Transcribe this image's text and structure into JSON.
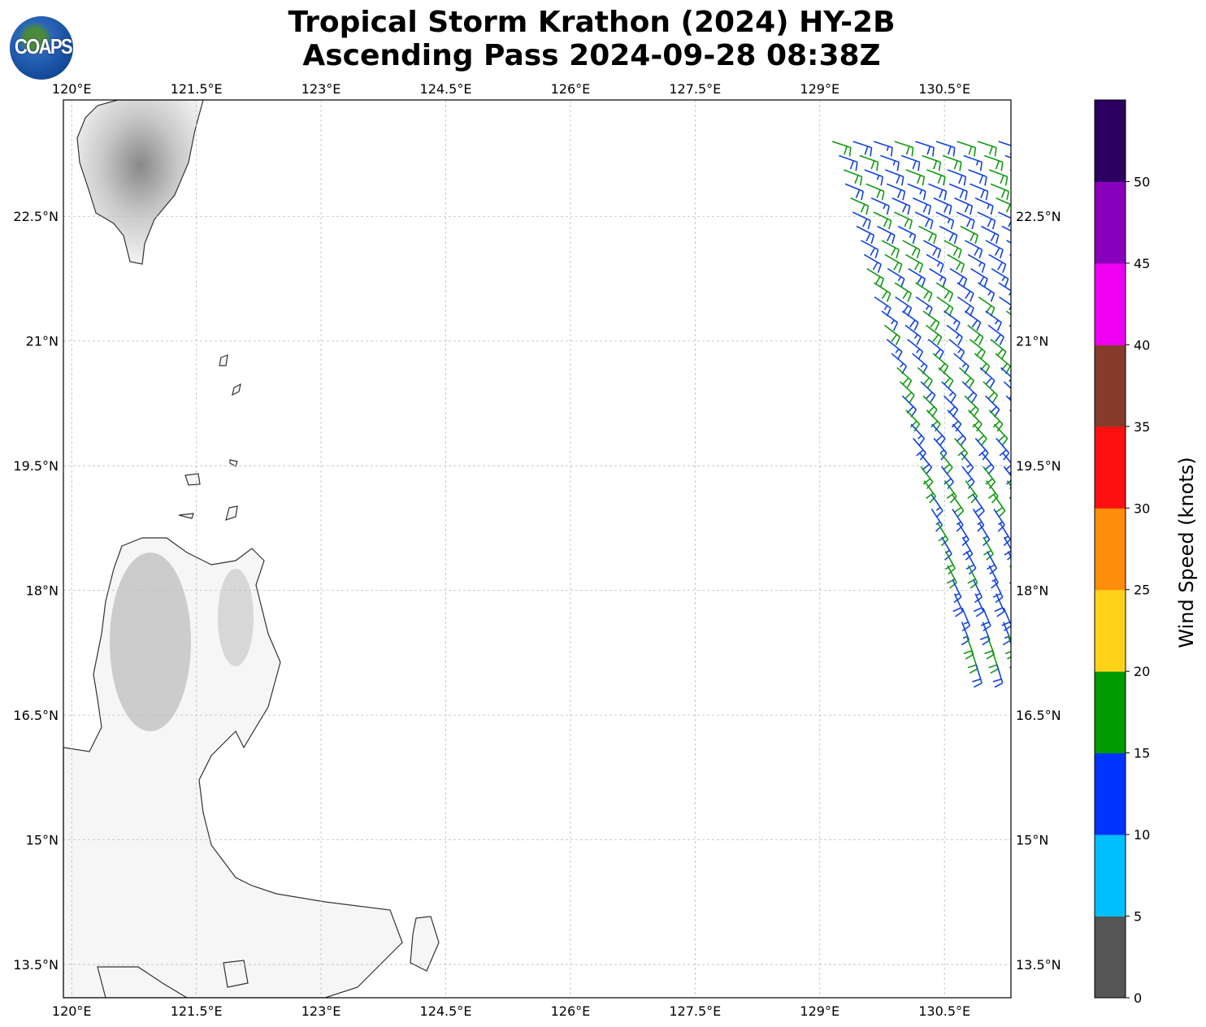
{
  "title_line1": "Tropical Storm Krathon (2024) HY-2B",
  "title_line2": "Ascending Pass 2024-09-28 08:38Z",
  "logo_text": "COAPS",
  "map": {
    "lon_range": [
      119.9,
      131.3
    ],
    "lat_range": [
      13.1,
      23.9
    ],
    "lon_ticks": [
      120,
      121.5,
      123,
      124.5,
      126,
      127.5,
      129,
      130.5
    ],
    "lon_labels": [
      "120°E",
      "121.5°E",
      "123°E",
      "124.5°E",
      "126°E",
      "127.5°E",
      "129°E",
      "130.5°E"
    ],
    "lat_ticks": [
      22.5,
      21,
      19.5,
      18,
      16.5,
      15,
      13.5
    ],
    "lat_labels": [
      "22.5°N",
      "21°N",
      "19.5°N",
      "18°N",
      "16.5°N",
      "15°N",
      "13.5°N"
    ]
  },
  "colorbar": {
    "label": "Wind Speed (knots)",
    "bounds": [
      0,
      5,
      10,
      15,
      20,
      25,
      30,
      35,
      40,
      45,
      50,
      55
    ],
    "tick_labels": [
      "0",
      "5",
      "10",
      "15",
      "20",
      "25",
      "30",
      "35",
      "40",
      "45",
      "50"
    ],
    "colors": [
      "#555555",
      "#00bfff",
      "#0033ff",
      "#009900",
      "#ffd21a",
      "#ff8c0a",
      "#ff1010",
      "#853c2a",
      "#f000f0",
      "#8800bb",
      "#2b0060"
    ]
  },
  "chart_data": {
    "type": "wind_barbs",
    "swath": {
      "north_lat": 23.4,
      "south_lat": 17.1,
      "west_edge_lon_north": 129.15,
      "west_edge_lon_south": 130.85,
      "east_lon": 131.3
    },
    "speed_range_knots": [
      10,
      20
    ],
    "direction_note_north_deg": 290,
    "direction_note_south_deg": 340
  }
}
